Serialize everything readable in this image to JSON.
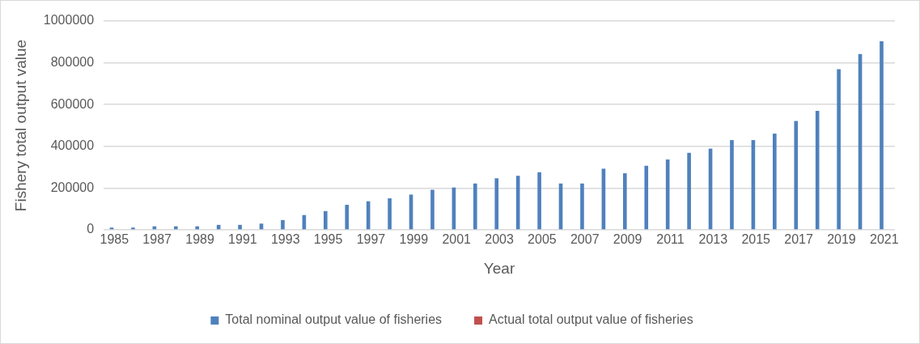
{
  "chart_data": {
    "type": "bar",
    "xlabel": "Year",
    "ylabel": "Fishery total output value",
    "categories": [
      "1985",
      null,
      "1987",
      null,
      "1989",
      null,
      "1991",
      null,
      "1993",
      null,
      "1995",
      null,
      "1997",
      null,
      "1999",
      null,
      "2001",
      null,
      "2003",
      null,
      "2005",
      null,
      "2007",
      null,
      "2009",
      null,
      "2011",
      null,
      "2013",
      null,
      "2015",
      null,
      "2017",
      null,
      "2019",
      null,
      "2021"
    ],
    "series": [
      {
        "name": "Total nominal output value of fisheries",
        "color": "#4f81bd",
        "values": [
          11000,
          11000,
          17000,
          17000,
          17000,
          24000,
          24000,
          30000,
          47000,
          71000,
          90000,
          120000,
          137000,
          151000,
          169000,
          192000,
          203000,
          222000,
          247000,
          259000,
          276000,
          222000,
          222000,
          293000,
          271000,
          307000,
          337000,
          369000,
          389000,
          430000,
          430000,
          461000,
          521000,
          570000,
          769000,
          842000,
          903000
        ]
      },
      {
        "name": "Actual total output value of fisheries",
        "color": "#c0504d",
        "values": [
          null,
          null,
          null,
          null,
          null,
          null,
          null,
          null,
          null,
          null,
          null,
          null,
          null,
          null,
          null,
          null,
          null,
          null,
          null,
          null,
          null,
          null,
          null,
          null,
          null,
          null,
          null,
          null,
          null,
          null,
          null,
          null,
          null,
          null,
          null,
          null,
          null
        ]
      }
    ],
    "ylim": [
      0,
      1000000
    ],
    "yticks": [
      0,
      200000,
      400000,
      600000,
      800000,
      1000000
    ],
    "grid": "y",
    "legend": "bottom"
  }
}
